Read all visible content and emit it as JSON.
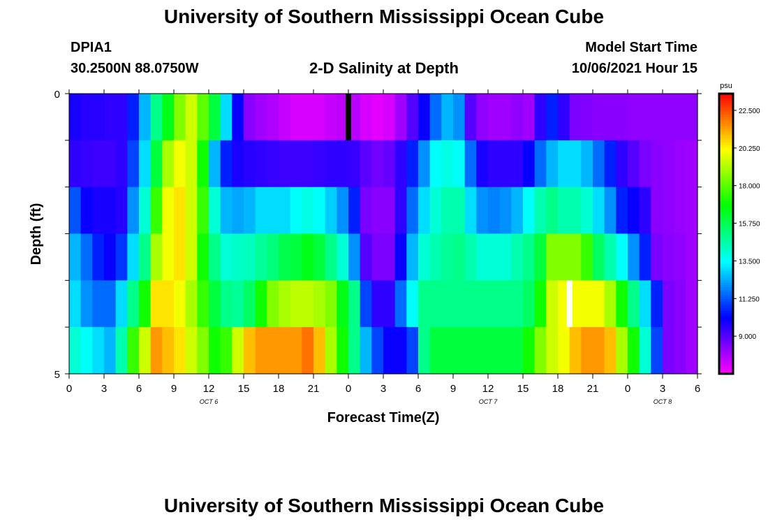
{
  "page": {
    "title_top": "University of Southern Mississippi Ocean Cube",
    "title_bottom": "University of Southern Mississippi Ocean Cube",
    "station": "DPIA1",
    "coords": "30.2500N  88.0750W",
    "plot_title": "2-D Salinity at Depth",
    "model_label": "Model Start Time",
    "model_time": "10/06/2021 Hour 15"
  },
  "chart_data": {
    "type": "heatmap",
    "title": "2-D Salinity at Depth",
    "xlabel": "Forecast Time(Z)",
    "ylabel": "Depth (ft)",
    "ylim": [
      0,
      5
    ],
    "y_ticks": [
      "0",
      "5"
    ],
    "x_hours": [
      0,
      54
    ],
    "x_tick_labels": [
      "0",
      "3",
      "6",
      "9",
      "12",
      "15",
      "18",
      "21",
      "0",
      "3",
      "6",
      "9",
      "12",
      "15",
      "18",
      "21",
      "0",
      "3",
      "6"
    ],
    "day_labels": [
      {
        "text": "OCT 6",
        "hour": 12
      },
      {
        "text": "OCT 7",
        "hour": 36
      },
      {
        "text": "OCT 8",
        "hour": 51
      }
    ],
    "markers": [
      {
        "hour": 24,
        "row": 0,
        "color": "#000000"
      },
      {
        "hour": 43,
        "row": 4,
        "color": "#ffffff"
      }
    ],
    "colorbar": {
      "unit": "psu",
      "min": 6.75,
      "max": 23.5,
      "ticks": [
        "22.500",
        "20.250",
        "18.000",
        "15.750",
        "13.500",
        "11.250",
        "9.000"
      ],
      "tick_values": [
        22.5,
        20.25,
        18.0,
        15.75,
        13.5,
        11.25,
        9.0
      ]
    },
    "salinity_rows": [
      [
        9.8,
        9.6,
        9.6,
        9.5,
        9.5,
        10.5,
        12.5,
        15.0,
        16.5,
        18.5,
        19.5,
        18.0,
        16.0,
        13.0,
        10.0,
        8.3,
        8.0,
        7.8,
        7.5,
        7.3,
        7.3,
        7.3,
        7.5,
        7.6,
        7.7,
        7.3,
        7.1,
        7.3,
        8.0,
        9.0,
        10.0,
        11.5,
        12.5,
        12.0,
        9.0,
        8.2,
        8.0,
        8.0,
        8.2,
        8.0,
        9.5,
        10.5,
        9.5,
        8.5,
        8.4,
        8.3,
        8.3,
        8.3,
        8.2,
        8.2,
        8.2,
        8.2,
        8.2,
        8.2
      ],
      [
        9.5,
        9.4,
        9.3,
        9.3,
        9.5,
        11.0,
        13.0,
        16.0,
        19.0,
        20.0,
        19.5,
        17.0,
        12.5,
        10.5,
        9.8,
        9.6,
        9.5,
        9.4,
        9.3,
        9.3,
        9.3,
        9.4,
        9.5,
        9.5,
        9.4,
        8.9,
        8.6,
        8.8,
        9.5,
        10.5,
        12.0,
        13.5,
        13.8,
        13.5,
        11.5,
        9.8,
        9.5,
        9.5,
        9.5,
        10.0,
        11.5,
        12.5,
        13.0,
        13.0,
        12.5,
        11.5,
        10.5,
        9.5,
        9.0,
        8.5,
        8.3,
        8.2,
        8.1,
        8.0
      ],
      [
        11.2,
        10.0,
        9.8,
        9.8,
        9.6,
        12.0,
        14.0,
        17.5,
        20.0,
        20.5,
        19.5,
        17.5,
        14.0,
        12.5,
        12.3,
        12.5,
        13.0,
        13.0,
        13.0,
        13.5,
        13.8,
        13.5,
        12.8,
        12.0,
        10.5,
        8.5,
        8.3,
        8.3,
        9.5,
        11.5,
        13.0,
        14.0,
        14.5,
        14.5,
        13.0,
        12.0,
        11.8,
        12.0,
        12.5,
        13.5,
        14.5,
        15.0,
        14.5,
        14.5,
        14.0,
        13.0,
        12.0,
        10.5,
        10.0,
        9.5,
        8.3,
        8.2,
        8.1,
        8.0
      ],
      [
        12.5,
        11.5,
        10.5,
        10.0,
        10.8,
        13.0,
        15.0,
        19.0,
        20.0,
        20.5,
        19.5,
        17.0,
        15.0,
        14.0,
        14.2,
        14.3,
        14.8,
        15.2,
        15.8,
        16.0,
        16.5,
        16.0,
        15.0,
        14.0,
        12.0,
        9.0,
        8.5,
        8.5,
        10.0,
        12.5,
        14.0,
        14.5,
        14.8,
        15.0,
        14.5,
        14.0,
        14.0,
        14.0,
        14.5,
        15.0,
        16.0,
        18.5,
        18.5,
        18.5,
        17.5,
        15.5,
        14.5,
        13.5,
        12.0,
        10.5,
        8.5,
        8.3,
        8.2,
        8.0
      ],
      [
        13.0,
        12.0,
        11.5,
        11.5,
        13.0,
        15.0,
        17.0,
        20.5,
        20.5,
        20.0,
        19.0,
        17.5,
        16.0,
        15.0,
        14.8,
        15.5,
        17.0,
        18.5,
        19.0,
        19.3,
        19.3,
        19.0,
        18.5,
        16.5,
        15.0,
        11.0,
        9.5,
        9.5,
        11.5,
        13.5,
        15.0,
        15.0,
        15.0,
        15.0,
        15.0,
        15.0,
        15.0,
        15.0,
        15.0,
        15.5,
        17.0,
        19.5,
        20.0,
        20.0,
        20.0,
        20.0,
        19.0,
        17.0,
        15.0,
        13.0,
        10.5,
        8.5,
        8.3,
        8.0
      ],
      [
        14.0,
        13.5,
        13.0,
        12.5,
        14.5,
        17.5,
        19.5,
        21.5,
        21.0,
        20.5,
        19.5,
        18.5,
        17.0,
        17.5,
        19.5,
        21.0,
        21.5,
        21.5,
        21.5,
        21.5,
        22.0,
        21.0,
        19.0,
        17.0,
        15.0,
        12.5,
        11.0,
        10.0,
        10.0,
        11.0,
        15.0,
        16.0,
        16.0,
        16.0,
        16.0,
        16.0,
        16.0,
        16.0,
        16.0,
        17.0,
        18.5,
        19.5,
        20.0,
        21.0,
        21.5,
        21.5,
        21.0,
        19.0,
        17.0,
        14.0,
        11.0,
        8.5,
        8.3,
        8.0
      ]
    ]
  }
}
